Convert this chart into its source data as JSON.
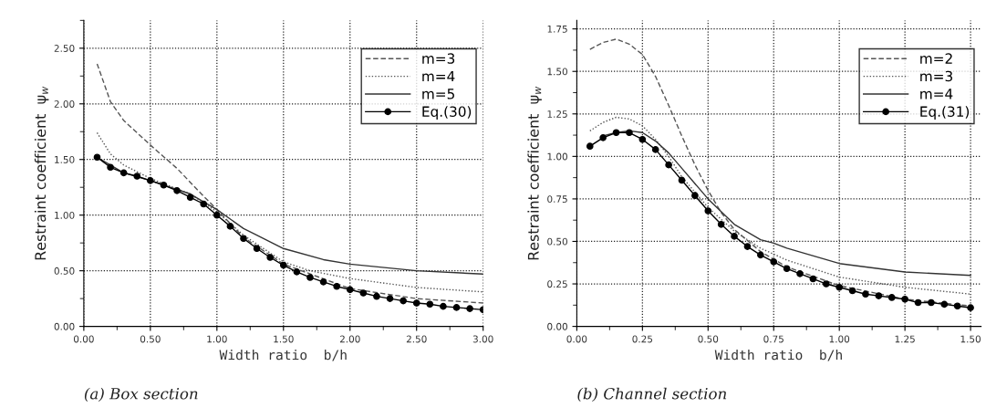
{
  "chart_data": [
    {
      "type": "line",
      "xlabel": "Width ratio  b/h",
      "ylabel": "Restraint coefficient  ψ$_{w}$",
      "annotations": [
        "(a) Box section"
      ],
      "xlim": [
        0,
        3.0
      ],
      "ylim": [
        0,
        2.75
      ],
      "xticks": [
        {
          "value": 0,
          "label": "0.00"
        },
        {
          "value": 0.5,
          "label": "0.50"
        },
        {
          "value": 1.0,
          "label": "1.00"
        },
        {
          "value": 1.5,
          "label": "1.50"
        },
        {
          "value": 2.0,
          "label": "2.00"
        },
        {
          "value": 2.5,
          "label": "2.50"
        },
        {
          "value": 3.0,
          "label": "3.00"
        }
      ],
      "yticks": [
        {
          "value": 0,
          "label": "0.00"
        },
        {
          "value": 0.5,
          "label": "0.50"
        },
        {
          "value": 1.0,
          "label": "1.00"
        },
        {
          "value": 1.5,
          "label": "1.50"
        },
        {
          "value": 2.0,
          "label": "2.00"
        },
        {
          "value": 2.5,
          "label": "2.50"
        }
      ],
      "grid": true,
      "legend": "top right",
      "series": [
        {
          "name": "m=3",
          "color": "#555555",
          "line_style": "dashed",
          "marker": "none",
          "x": [
            0.1,
            0.2,
            0.3,
            0.5,
            0.7,
            0.9,
            1.0,
            1.2,
            1.5,
            2.0,
            2.5,
            3.0
          ],
          "values": [
            2.36,
            2.02,
            1.85,
            1.63,
            1.42,
            1.17,
            1.05,
            0.8,
            0.56,
            0.34,
            0.25,
            0.21
          ]
        },
        {
          "name": "m=4",
          "color": "#555555",
          "line_style": "dotted",
          "marker": "none",
          "x": [
            0.1,
            0.2,
            0.3,
            0.5,
            0.8,
            1.0,
            1.2,
            1.5,
            1.7,
            2.0,
            2.5,
            3.0
          ],
          "values": [
            1.74,
            1.55,
            1.45,
            1.33,
            1.19,
            1.03,
            0.82,
            0.58,
            0.5,
            0.43,
            0.35,
            0.31
          ]
        },
        {
          "name": "m=5",
          "color": "#333333",
          "line_style": "solid",
          "marker": "none",
          "x": [
            0.1,
            0.3,
            0.5,
            0.8,
            1.0,
            1.2,
            1.5,
            1.8,
            2.0,
            2.5,
            3.0
          ],
          "values": [
            1.52,
            1.38,
            1.31,
            1.19,
            1.05,
            0.88,
            0.7,
            0.6,
            0.56,
            0.5,
            0.47
          ]
        },
        {
          "name": "Eq.(30)",
          "color": "#000000",
          "line_style": "solid",
          "marker": "circle",
          "x": [
            0.1,
            0.2,
            0.3,
            0.4,
            0.5,
            0.6,
            0.7,
            0.8,
            0.9,
            1.0,
            1.1,
            1.2,
            1.3,
            1.4,
            1.5,
            1.6,
            1.7,
            1.8,
            1.9,
            2.0,
            2.1,
            2.2,
            2.3,
            2.4,
            2.5,
            2.6,
            2.7,
            2.8,
            2.9,
            3.0
          ],
          "values": [
            1.52,
            1.43,
            1.38,
            1.35,
            1.31,
            1.27,
            1.22,
            1.16,
            1.1,
            1.0,
            0.9,
            0.79,
            0.7,
            0.62,
            0.55,
            0.49,
            0.44,
            0.4,
            0.36,
            0.33,
            0.3,
            0.27,
            0.25,
            0.23,
            0.21,
            0.2,
            0.18,
            0.17,
            0.16,
            0.15
          ]
        }
      ]
    },
    {
      "type": "line",
      "xlabel": "Width ratio  b/h",
      "ylabel": "Restraint coefficient  ψ$_{w}$",
      "annotations": [
        "(b) Channel section"
      ],
      "xlim": [
        0,
        1.54
      ],
      "ylim": [
        0,
        1.8
      ],
      "xticks": [
        {
          "value": 0,
          "label": "0.00"
        },
        {
          "value": 0.25,
          "label": "0.25"
        },
        {
          "value": 0.5,
          "label": "0.50"
        },
        {
          "value": 0.75,
          "label": "0.75"
        },
        {
          "value": 1.0,
          "label": "1.00"
        },
        {
          "value": 1.25,
          "label": "1.25"
        },
        {
          "value": 1.5,
          "label": "1.50"
        }
      ],
      "yticks": [
        {
          "value": 0,
          "label": "0.00"
        },
        {
          "value": 0.25,
          "label": "0.25"
        },
        {
          "value": 0.5,
          "label": "0.50"
        },
        {
          "value": 0.75,
          "label": "0.75"
        },
        {
          "value": 1.0,
          "label": "1.00"
        },
        {
          "value": 1.25,
          "label": "1.25"
        },
        {
          "value": 1.5,
          "label": "1.50"
        },
        {
          "value": 1.75,
          "label": "1.75"
        }
      ],
      "grid": true,
      "legend": "top right",
      "series": [
        {
          "name": "m=2",
          "color": "#555555",
          "line_style": "dashed",
          "marker": "none",
          "x": [
            0.05,
            0.1,
            0.15,
            0.2,
            0.25,
            0.3,
            0.35,
            0.4,
            0.45,
            0.5,
            0.55,
            0.6,
            0.7,
            0.8,
            1.0,
            1.25,
            1.5
          ],
          "values": [
            1.63,
            1.67,
            1.69,
            1.66,
            1.6,
            1.47,
            1.3,
            1.12,
            0.95,
            0.8,
            0.67,
            0.57,
            0.44,
            0.35,
            0.24,
            0.16,
            0.12
          ]
        },
        {
          "name": "m=3",
          "color": "#555555",
          "line_style": "dotted",
          "marker": "none",
          "x": [
            0.05,
            0.1,
            0.15,
            0.2,
            0.25,
            0.3,
            0.35,
            0.4,
            0.5,
            0.6,
            0.7,
            0.8,
            1.0,
            1.25,
            1.5
          ],
          "values": [
            1.15,
            1.2,
            1.23,
            1.22,
            1.18,
            1.1,
            1.0,
            0.88,
            0.7,
            0.56,
            0.46,
            0.39,
            0.29,
            0.23,
            0.19
          ]
        },
        {
          "name": "m=4",
          "color": "#333333",
          "line_style": "solid",
          "marker": "none",
          "x": [
            0.1,
            0.15,
            0.2,
            0.25,
            0.3,
            0.35,
            0.4,
            0.5,
            0.6,
            0.7,
            0.75,
            0.8,
            1.0,
            1.25,
            1.5
          ],
          "values": [
            1.12,
            1.14,
            1.15,
            1.14,
            1.09,
            1.02,
            0.93,
            0.75,
            0.6,
            0.51,
            0.49,
            0.46,
            0.37,
            0.32,
            0.3
          ]
        },
        {
          "name": "Eq.(31)",
          "color": "#000000",
          "line_style": "solid",
          "marker": "circle",
          "x": [
            0.05,
            0.1,
            0.15,
            0.2,
            0.25,
            0.3,
            0.35,
            0.4,
            0.45,
            0.5,
            0.55,
            0.6,
            0.65,
            0.7,
            0.75,
            0.8,
            0.85,
            0.9,
            0.95,
            1.0,
            1.05,
            1.1,
            1.15,
            1.2,
            1.25,
            1.3,
            1.35,
            1.4,
            1.45,
            1.5
          ],
          "values": [
            1.06,
            1.11,
            1.14,
            1.14,
            1.1,
            1.04,
            0.95,
            0.86,
            0.77,
            0.68,
            0.6,
            0.53,
            0.47,
            0.42,
            0.38,
            0.34,
            0.31,
            0.28,
            0.25,
            0.23,
            0.21,
            0.19,
            0.18,
            0.17,
            0.16,
            0.14,
            0.14,
            0.13,
            0.12,
            0.11
          ]
        }
      ]
    }
  ]
}
